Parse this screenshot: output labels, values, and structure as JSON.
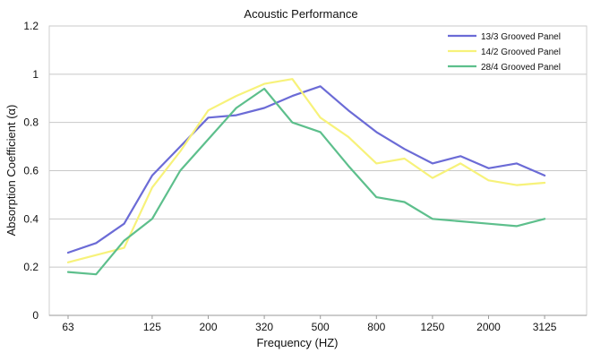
{
  "chart_data": {
    "type": "line",
    "title": "Acoustic Performance",
    "xlabel": "Frequency (HZ)",
    "ylabel": "Absorption Coefficient (α)",
    "ylim": [
      0,
      1.2
    ],
    "yticks": [
      "0",
      "0.2",
      "0.4",
      "0.6",
      "0.8",
      "1",
      "1.2"
    ],
    "x": [
      63,
      80,
      100,
      125,
      160,
      200,
      250,
      320,
      400,
      500,
      630,
      800,
      1000,
      1250,
      1600,
      2000,
      2500,
      3125,
      4000
    ],
    "x_tick_labels": [
      "63",
      "125",
      "200",
      "320",
      "500",
      "800",
      "1250",
      "2000",
      "3125"
    ],
    "x_tick_label_indices": [
      0,
      3,
      5,
      7,
      9,
      11,
      13,
      15,
      17
    ],
    "grid": "horizontal",
    "legend_position": "top-right",
    "series": [
      {
        "name": "13/3 Grooved Panel",
        "color": "#6b6bd6",
        "values": [
          0.26,
          0.3,
          0.38,
          0.58,
          0.7,
          0.82,
          0.83,
          0.86,
          0.91,
          0.95,
          0.85,
          0.76,
          0.69,
          0.63,
          0.66,
          0.61,
          0.63,
          0.58,
          null
        ]
      },
      {
        "name": "14/2 Grooved Panel",
        "color": "#f7f27a",
        "values": [
          0.22,
          0.25,
          0.28,
          0.53,
          0.68,
          0.85,
          0.91,
          0.96,
          0.98,
          0.82,
          0.74,
          0.63,
          0.65,
          0.57,
          0.63,
          0.56,
          0.54,
          0.55,
          null
        ]
      },
      {
        "name": "28/4 Grooved Panel",
        "color": "#5dbf8c",
        "values": [
          0.18,
          0.17,
          0.31,
          0.4,
          0.6,
          0.73,
          0.86,
          0.94,
          0.8,
          0.76,
          0.62,
          0.49,
          0.47,
          0.4,
          0.39,
          0.38,
          0.37,
          0.4,
          null
        ]
      }
    ]
  }
}
